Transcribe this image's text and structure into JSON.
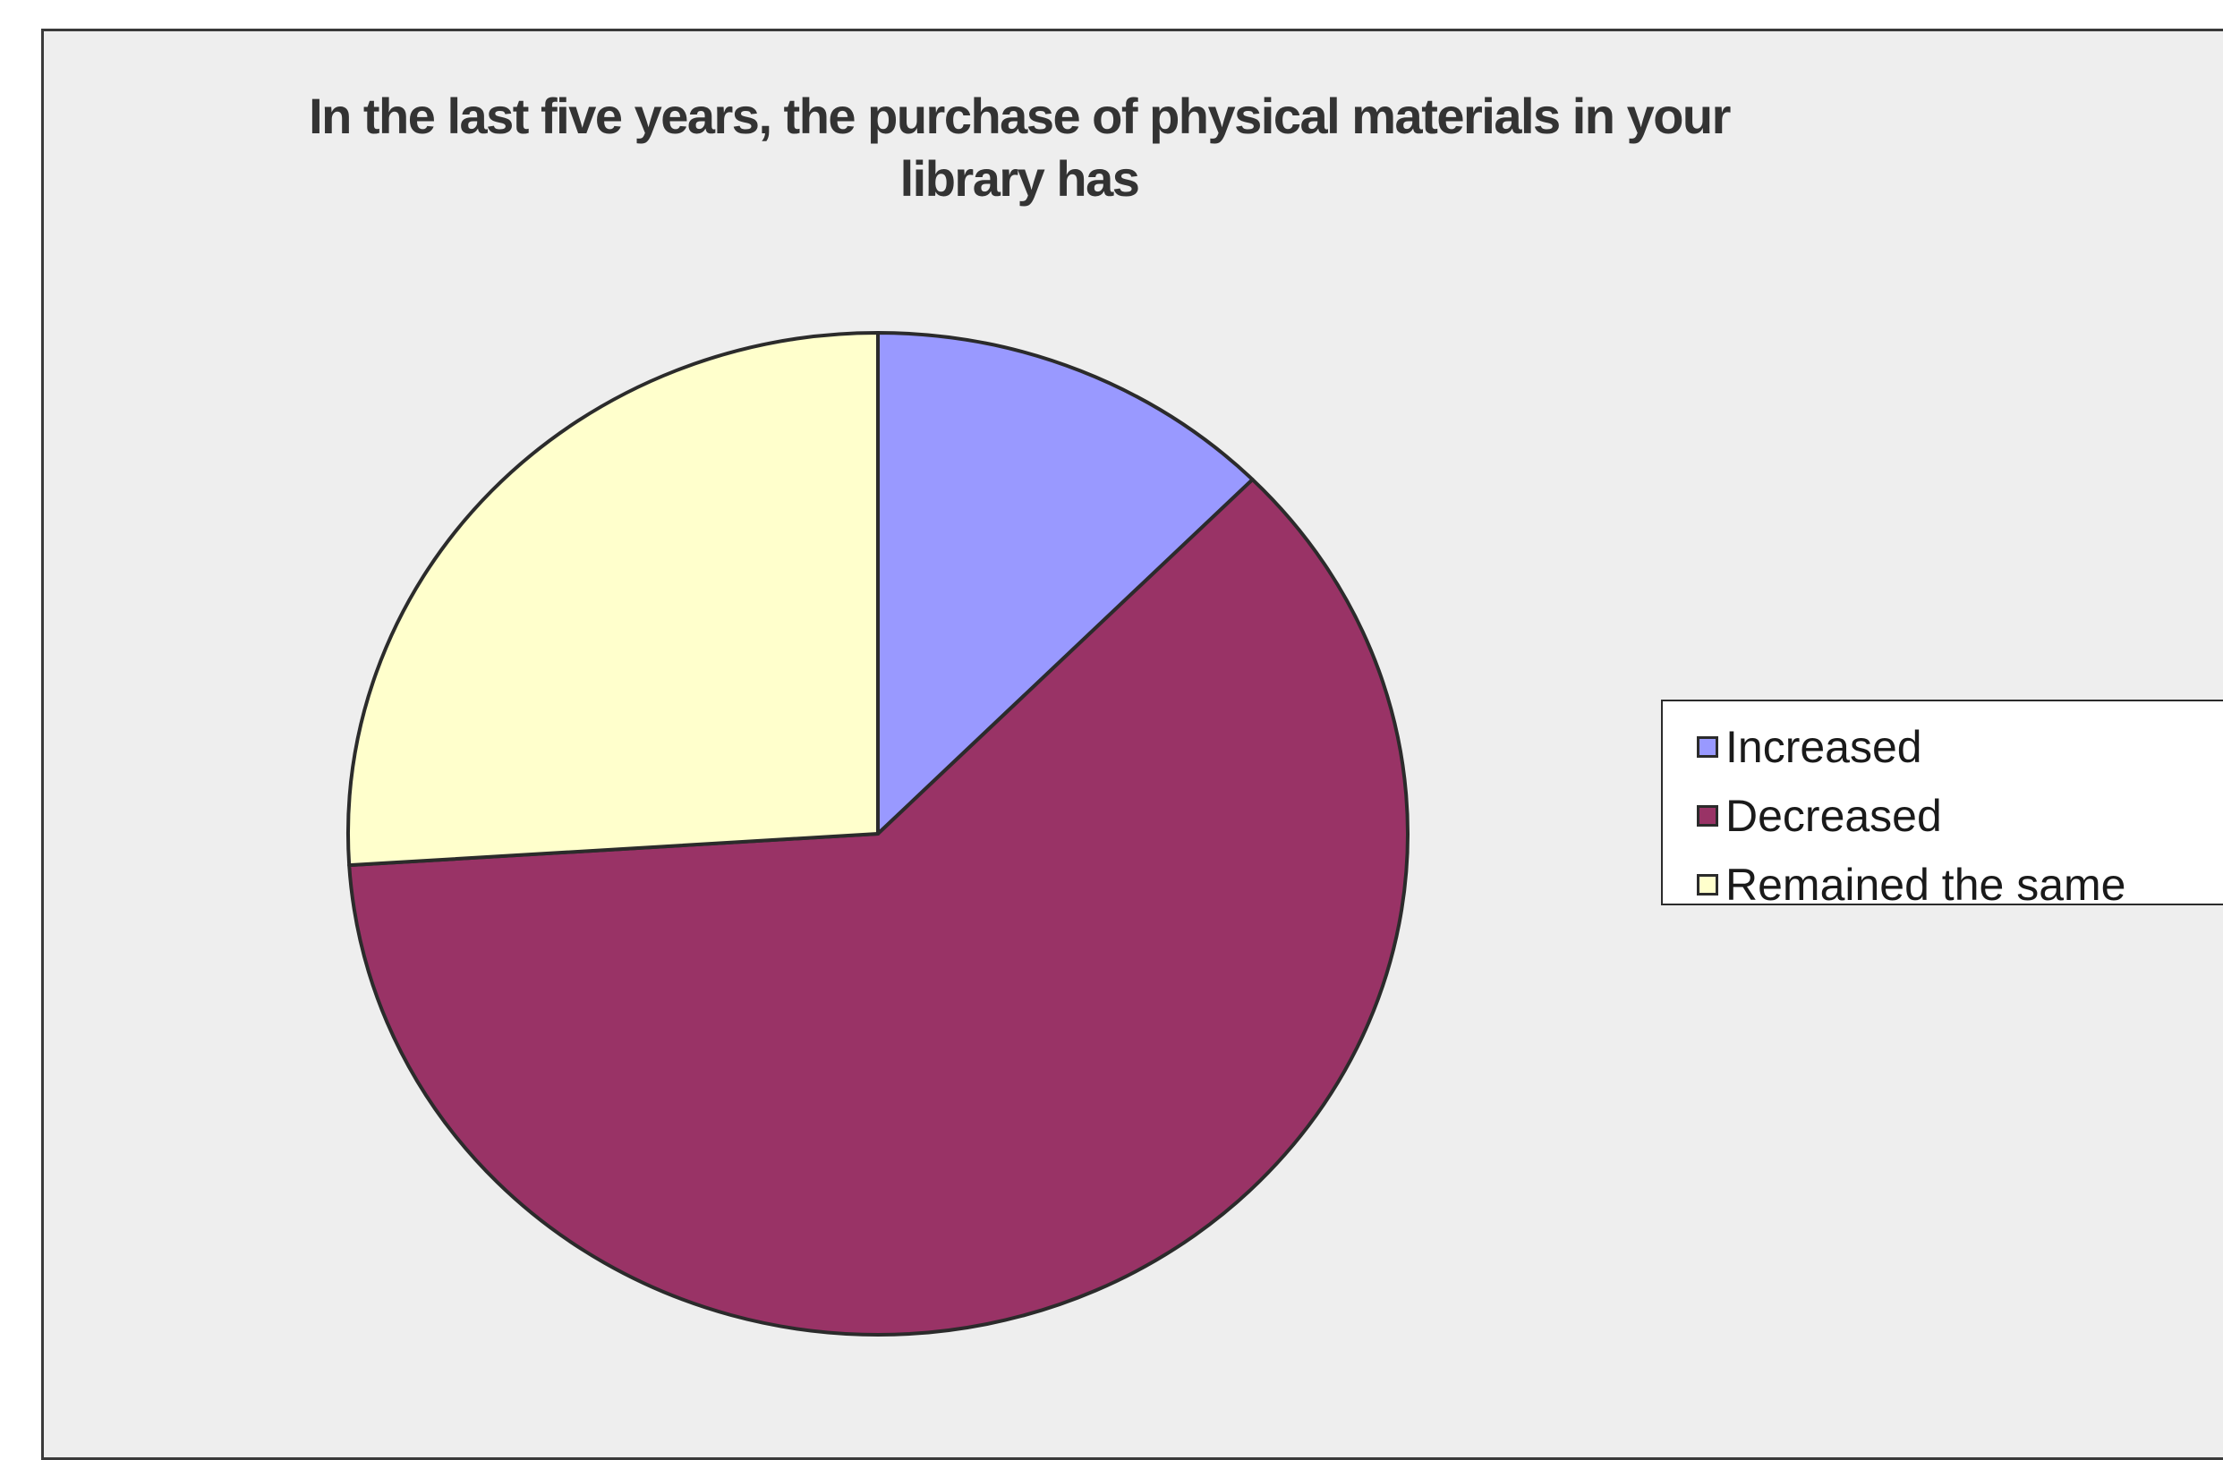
{
  "chart_data": {
    "type": "pie",
    "title_lines": [
      "In the last five years, the purchase of physical materials in your",
      "library has"
    ],
    "categories": [
      "Increased",
      "Decreased",
      "Remained the same"
    ],
    "values": [
      12.5,
      61.5,
      26.0
    ],
    "colors": [
      "#9999ff",
      "#993366",
      "#ffffcc"
    ],
    "legend_position": "right"
  }
}
